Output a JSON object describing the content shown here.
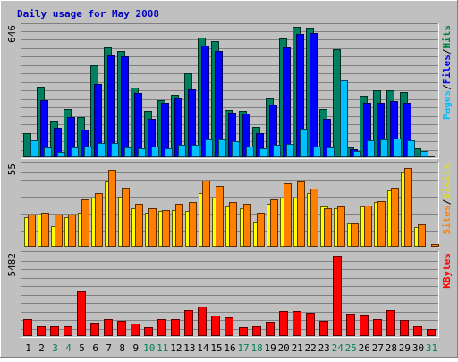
{
  "chart_data": {
    "type": "bar",
    "title": "Daily usage for May 2008",
    "categories": [
      "1",
      "2",
      "3",
      "4",
      "5",
      "6",
      "7",
      "8",
      "9",
      "10",
      "11",
      "12",
      "13",
      "14",
      "15",
      "16",
      "17",
      "18",
      "19",
      "20",
      "21",
      "22",
      "23",
      "24",
      "25",
      "26",
      "27",
      "28",
      "29",
      "30",
      "31"
    ],
    "weekend_days": [
      "3",
      "4",
      "10",
      "11",
      "17",
      "18",
      "24",
      "25",
      "31"
    ],
    "grid": true,
    "panels": [
      {
        "id": "top",
        "ymax_label": "646",
        "ylim": [
          0,
          646
        ],
        "right_labels": [
          {
            "text": "Pages",
            "color": "#00c0ff"
          },
          {
            "text": "/",
            "color": "#000000"
          },
          {
            "text": "Files",
            "color": "#0000ff"
          },
          {
            "text": "/",
            "color": "#000000"
          },
          {
            "text": "Hits",
            "color": "#008040"
          }
        ],
        "series": [
          {
            "key": "hits",
            "color": "#008060",
            "values": [
              120,
              350,
              180,
              240,
              200,
              455,
              545,
              525,
              345,
              230,
              285,
              310,
              415,
              595,
              575,
              235,
              230,
              150,
              290,
              590,
              645,
              640,
              240,
              535,
              50,
              305,
              330,
              330,
              325,
              45,
              8
            ]
          },
          {
            "key": "files",
            "color": "#0000ff",
            "values": [
              0,
              285,
              145,
              200,
              135,
              365,
              505,
              500,
              320,
              190,
              270,
              290,
              335,
              555,
              525,
              220,
              215,
              120,
              260,
              545,
              610,
              615,
              190,
              0,
              40,
              270,
              270,
              280,
              270,
              0,
              0
            ]
          },
          {
            "key": "pages",
            "color": "#00c0ff",
            "values": [
              85,
              50,
              25,
              50,
              55,
              70,
              70,
              50,
              45,
              55,
              45,
              60,
              60,
              90,
              90,
              80,
              55,
              45,
              60,
              65,
              140,
              55,
              50,
              380,
              30,
              85,
              90,
              95,
              85,
              30,
              0
            ]
          }
        ]
      },
      {
        "id": "middle",
        "ymax_label": "55",
        "ylim": [
          0,
          55
        ],
        "right_labels": [
          {
            "text": "Sites",
            "color": "#ff8000"
          },
          {
            "text": "/",
            "color": "#000000"
          },
          {
            "text": "Visits",
            "color": "#e0e000"
          }
        ],
        "series": [
          {
            "key": "visits",
            "color": "#ffff00",
            "values": [
              20,
              22,
              14,
              20,
              23,
              33,
              44,
              34,
              26,
              23,
              24,
              25,
              24,
              36,
              33,
              27,
              26,
              17,
              29,
              33,
              33,
              36,
              27,
              26,
              16,
              27,
              30,
              38,
              51,
              13,
              0
            ]
          },
          {
            "key": "sites",
            "color": "#ff8000",
            "values": [
              22,
              23,
              22,
              22,
              32,
              36,
              52,
              40,
              29,
              26,
              25,
              29,
              30,
              45,
              41,
              30,
              29,
              23,
              32,
              43,
              44,
              39,
              26,
              27,
              16,
              28,
              31,
              40,
              53,
              15,
              2
            ]
          }
        ]
      },
      {
        "id": "bottom",
        "ymax_label": "5482",
        "ylim": [
          0,
          5482
        ],
        "right_labels": [
          {
            "text": "KBytes",
            "color": "#ff0000"
          }
        ],
        "series": [
          {
            "key": "kbytes",
            "color": "#ff0000",
            "values": [
              1150,
              660,
              650,
              650,
              3010,
              880,
              1150,
              1050,
              830,
              600,
              1140,
              1160,
              1760,
              2000,
              1400,
              1280,
              620,
              660,
              940,
              1660,
              1660,
              1560,
              1040,
              5440,
              1490,
              1430,
              1130,
              1750,
              1100,
              680,
              470
            ]
          }
        ]
      }
    ]
  }
}
